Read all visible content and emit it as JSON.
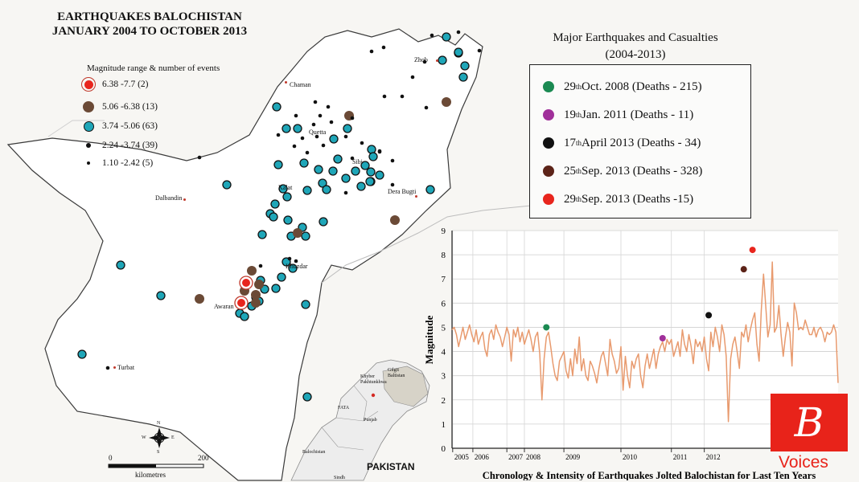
{
  "map": {
    "title_line1": "EARTHQUAKES BALOCHISTAN",
    "title_line2": "JANUARY 2004 TO OCTOBER 2013",
    "legend_title": "Magnitude range & number of events",
    "legend": [
      {
        "label": "6.38 -7.7 (2)",
        "color": "#e8251d"
      },
      {
        "label": "5.06 -6.38 (13)",
        "color": "#6b4a36"
      },
      {
        "label": "3.74 -5.06 (63)",
        "color": "#1fa6b8"
      },
      {
        "label": "2.24 -3.74 (39)",
        "color": "#111111"
      },
      {
        "label": "1.10 -2.42 (5)",
        "color": "#111111"
      }
    ],
    "cities": {
      "zhob": "Zhob",
      "chaman": "Chaman",
      "quetta": "Quetta",
      "sibi": "Sibi",
      "kalat": "Kalat",
      "dera_bugti": "Dera Bugti",
      "dalbandin": "Dalbandin",
      "khuzdar": "Khuzdar",
      "awaran": "Awaran",
      "turbat": "Turbat"
    },
    "inset": {
      "gilgit": "Gilgit Baltistan",
      "kp": "Khyber Pakhtunkhwa",
      "fata": "FATA",
      "punjab": "Punjab",
      "balochistan": "Balochistan",
      "sindh": "Sindh",
      "country": "PAKISTAN"
    },
    "scale": {
      "zero": "0",
      "max": "200",
      "unit": "kilometres"
    },
    "compass": {
      "n": "N",
      "s": "S",
      "e": "E",
      "w": "W"
    }
  },
  "casualties": {
    "title_line1": "Major Earthquakes and Casualties",
    "title_line2": "(2004-2013)",
    "items": [
      {
        "day": "29",
        "sup": "th",
        "rest": " Oct. 2008 (Deaths - 215)",
        "color": "#1b8a52"
      },
      {
        "day": "19",
        "sup": "th",
        "rest": " Jan. 2011 (Deaths - 11)",
        "color": "#a0309a"
      },
      {
        "day": "17",
        "sup": "th",
        "rest": " April 2013 (Deaths - 34)",
        "color": "#111111"
      },
      {
        "day": "25",
        "sup": "th",
        "rest": " Sep. 2013 (Deaths - 328)",
        "color": "#5c2318"
      },
      {
        "day": "29",
        "sup": "th",
        "rest": " Sep. 2013 (Deaths -15)",
        "color": "#e8251d"
      }
    ]
  },
  "chart_data": {
    "type": "line",
    "title": "Chronology & Intensity of Earthquakes Jolted Balochistan for Last Ten Years",
    "ylabel": "Magnitude",
    "xlabel": "",
    "ylim": [
      0,
      9
    ],
    "yticks": [
      "0",
      "1",
      "2",
      "3",
      "4",
      "5",
      "6",
      "7",
      "8",
      "9"
    ],
    "xticks": [
      {
        "label": "2005",
        "pos": 0.3
      },
      {
        "label": "2006",
        "pos": 9.5
      },
      {
        "label": "2007",
        "pos": 25
      },
      {
        "label": "2008",
        "pos": 33
      },
      {
        "label": "2009",
        "pos": 51
      },
      {
        "label": "2010",
        "pos": 77
      },
      {
        "label": "2011",
        "pos": 100
      },
      {
        "label": "2012",
        "pos": 115
      }
    ],
    "grid": true,
    "line_color": "#e89a6e",
    "series": [
      {
        "values": [
          4.9,
          5.0,
          4.7,
          4.2,
          4.6,
          5.0,
          4.5,
          4.8,
          5.1,
          4.7,
          4.4,
          4.9,
          4.3,
          4.6,
          4.8,
          4.1,
          3.8,
          4.7,
          4.9,
          4.5,
          5.1,
          4.8,
          4.6,
          4.2,
          4.6,
          5.0,
          4.7,
          3.6,
          4.9,
          4.6,
          5.0,
          4.4,
          4.8,
          4.3,
          4.6,
          4.9,
          4.5,
          4.0,
          4.6,
          4.8,
          3.9,
          2.0,
          3.7,
          4.6,
          4.8,
          4.2,
          3.5,
          3.0,
          2.8,
          3.6,
          3.8,
          4.0,
          3.2,
          2.9,
          3.7,
          3.0,
          4.1,
          3.5,
          4.6,
          3.2,
          3.7,
          3.0,
          2.8,
          3.6,
          3.4,
          3.1,
          2.7,
          3.3,
          3.8,
          4.0,
          3.5,
          3.0,
          4.5,
          3.9,
          3.6,
          3.1,
          3.3,
          4.2,
          2.4,
          3.8,
          3.0,
          2.5,
          3.6,
          3.3,
          3.7,
          3.9,
          3.0,
          2.5,
          3.4,
          3.9,
          3.3,
          3.7,
          4.1,
          3.3,
          3.9,
          4.2,
          4.4,
          4.0,
          4.5,
          4.3,
          4.5,
          3.8,
          4.1,
          4.4,
          3.8,
          4.9,
          4.3,
          4.0,
          4.7,
          4.2,
          3.5,
          4.5,
          4.2,
          4.4,
          4.0,
          4.6,
          3.7,
          3.2,
          4.8,
          4.2,
          5.0,
          4.6,
          4.0,
          5.1,
          4.7,
          3.8,
          1.1,
          3.7,
          4.3,
          4.6,
          4.0,
          3.3,
          4.8,
          4.6,
          5.1,
          4.4,
          4.9,
          5.3,
          5.6,
          4.3,
          3.6,
          5.7,
          7.2,
          5.9,
          4.6,
          5.1,
          7.7,
          4.8,
          5.0,
          5.9,
          4.7,
          3.8,
          4.6,
          5.2,
          4.8,
          3.4,
          6.0,
          5.6,
          4.9,
          5.0,
          4.9,
          5.3,
          5.0,
          4.7,
          4.7,
          5.0,
          4.6,
          4.9,
          5.0,
          4.8,
          4.4,
          4.8,
          4.7,
          4.8,
          5.1,
          4.8,
          2.7
        ]
      }
    ],
    "highlights": [
      {
        "x": 43,
        "y": 5.0,
        "color": "#1b8a52"
      },
      {
        "x": 96,
        "y": 4.55,
        "color": "#a0309a"
      },
      {
        "x": 117,
        "y": 5.5,
        "color": "#111111"
      },
      {
        "x": 133,
        "y": 7.4,
        "color": "#5c2318"
      },
      {
        "x": 137,
        "y": 8.2,
        "color": "#e8251d"
      }
    ]
  },
  "branding": {
    "logo_letter": "B",
    "voices": "Voices"
  }
}
